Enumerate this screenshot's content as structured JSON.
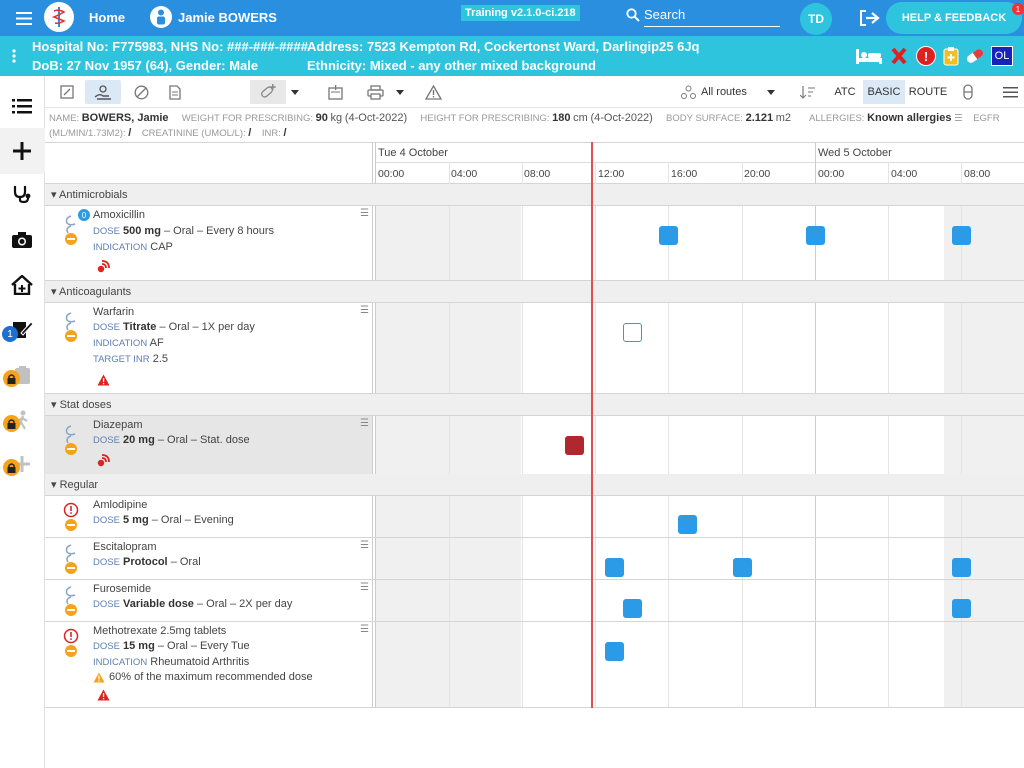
{
  "topbar": {
    "home_label": "Home",
    "patient_name": "Jamie BOWERS",
    "version": "Training v2.1.0-ci.218",
    "search_label": "Search",
    "user_initials": "TD",
    "help_label": "HELP & FEEDBACK",
    "help_badge": "1"
  },
  "patient_banner": {
    "line1_left": "Hospital No: F775983, NHS No: ###-###-####",
    "line1_right": "Address: 7523 Kempton Rd, Cockertonst Ward, Darlingip25 6Jq",
    "line2_left": "DoB: 27 Nov 1957 (64), Gender: Male",
    "line2_right": "Ethnicity: Mixed - any other mixed background",
    "ol_badge": "OL"
  },
  "sidebar": {
    "notify_count": "1"
  },
  "toolbar": {
    "routes_label": "All routes",
    "atc_label": "ATC",
    "basic_label": "BASIC",
    "route_label": "ROUTE"
  },
  "info": {
    "name_label": "NAME:",
    "name_value": "BOWERS, Jamie",
    "weight_label": "WEIGHT FOR PRESCRIBING:",
    "weight_value": "90",
    "weight_unit": "kg",
    "weight_date": "(4-Oct-2022)",
    "height_label": "HEIGHT FOR PRESCRIBING:",
    "height_value": "180",
    "height_unit": "cm",
    "height_date": "(4-Oct-2022)",
    "bsa_label": "BODY SURFACE:",
    "bsa_value": "2.121",
    "bsa_unit": "m2",
    "allergies_label": "ALLERGIES:",
    "allergies_value": "Known allergies",
    "egfr_label": "EGFR",
    "egfr_unit": "(ML/MIN/1.73M2):",
    "egfr_value": "/",
    "creat_label": "CREATININE (UMOL/L):",
    "creat_value": "/",
    "inr_label": "INR:",
    "inr_value": "/"
  },
  "timeline": {
    "day1": "Tue 4 October",
    "day2": "Wed 5 October",
    "hours": [
      "00:00",
      "04:00",
      "08:00",
      "12:00",
      "16:00",
      "20:00",
      "00:00",
      "04:00",
      "08:00"
    ]
  },
  "groups": {
    "antimicrobials": "Antimicrobials",
    "anticoagulants": "Anticoagulants",
    "stat": "Stat doses",
    "regular": "Regular"
  },
  "meds": {
    "amox": {
      "name": "Amoxicillin",
      "dose_label": "DOSE",
      "dose_value": "500 mg",
      "dose_rest": "– Oral – Every 8 hours",
      "ind_label": "INDICATION",
      "ind_value": "CAP",
      "badge": "0"
    },
    "warf": {
      "name": "Warfarin",
      "dose_label": "DOSE",
      "dose_value": "Titrate",
      "dose_rest": "– Oral – 1X per day",
      "ind_label": "INDICATION",
      "ind_value": "AF",
      "inr_label": "TARGET INR",
      "inr_value": "2.5"
    },
    "diaz": {
      "name": "Diazepam",
      "dose_label": "DOSE",
      "dose_value": "20 mg",
      "dose_rest": "– Oral – Stat. dose"
    },
    "amlo": {
      "name": "Amlodipine",
      "dose_label": "DOSE",
      "dose_value": "5 mg",
      "dose_rest": "– Oral – Evening"
    },
    "escit": {
      "name": "Escitalopram",
      "dose_label": "DOSE",
      "dose_value": "Protocol",
      "dose_rest": "– Oral"
    },
    "furo": {
      "name": "Furosemide",
      "dose_label": "DOSE",
      "dose_value": "Variable dose",
      "dose_rest": "– Oral – 2X per day"
    },
    "metho": {
      "name": "Methotrexate 2.5mg tablets",
      "dose_label": "DOSE",
      "dose_value": "15 mg",
      "dose_rest": "– Oral – Every Tue",
      "ind_label": "INDICATION",
      "ind_value": "Rheumatoid Arthritis",
      "warn": "60% of the maximum recommended dose"
    }
  },
  "colors": {
    "topbar": "#2b8fe0",
    "banner": "#2ec4dd",
    "dose_due": "#2b9be8",
    "dose_given": "#b0282d",
    "now_line": "#e05050"
  }
}
